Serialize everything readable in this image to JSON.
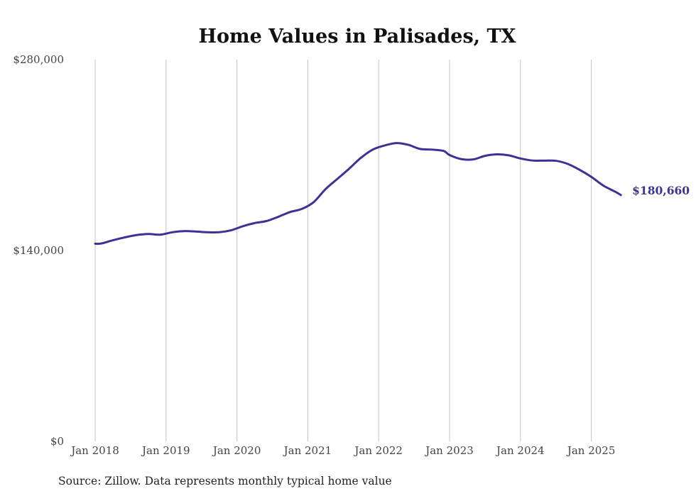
{
  "chart_data": {
    "type": "line",
    "title": "Home Values in Palisades, TX",
    "source": "Source: Zillow. Data represents monthly typical home value",
    "xlabel": "",
    "ylabel": "",
    "ylim": [
      0,
      280000
    ],
    "y_ticks": [
      {
        "value": 0,
        "label": "$0"
      },
      {
        "value": 140000,
        "label": "$140,000"
      },
      {
        "value": 280000,
        "label": "$280,000"
      }
    ],
    "x_ticks": [
      "Jan 2018",
      "Jan 2019",
      "Jan 2020",
      "Jan 2021",
      "Jan 2022",
      "Jan 2023",
      "Jan 2024",
      "Jan 2025"
    ],
    "grid": "vertical",
    "colors": {
      "line": "#3b3395",
      "grid": "#c4c4c4"
    },
    "end_label": "$180,660",
    "series": [
      {
        "x": [
          "2018-01",
          "2018-02",
          "2018-04",
          "2018-06",
          "2018-08",
          "2018-10",
          "2018-12",
          "2019-02",
          "2019-04",
          "2019-06",
          "2019-08",
          "2019-10",
          "2019-12",
          "2020-02",
          "2020-04",
          "2020-06",
          "2020-08",
          "2020-10",
          "2020-12",
          "2021-02",
          "2021-04",
          "2021-06",
          "2021-08",
          "2021-10",
          "2021-12",
          "2022-02",
          "2022-04",
          "2022-06",
          "2022-08",
          "2022-10",
          "2022-12",
          "2023-01",
          "2023-03",
          "2023-05",
          "2023-07",
          "2023-09",
          "2023-11",
          "2024-01",
          "2024-03",
          "2024-05",
          "2024-07",
          "2024-09",
          "2024-11",
          "2025-01",
          "2025-03",
          "2025-05",
          "2025-06"
        ],
        "values": [
          145000,
          145100,
          147500,
          149600,
          151300,
          152100,
          151600,
          153300,
          154200,
          153900,
          153400,
          153400,
          154800,
          157800,
          160100,
          161600,
          164700,
          168200,
          170500,
          175500,
          185000,
          192500,
          200000,
          208000,
          214000,
          217000,
          218800,
          217500,
          214500,
          214000,
          213000,
          210000,
          207000,
          206800,
          209400,
          210500,
          209800,
          207500,
          206000,
          205900,
          205800,
          203500,
          199200,
          194000,
          187700,
          183200,
          180660
        ]
      }
    ]
  }
}
